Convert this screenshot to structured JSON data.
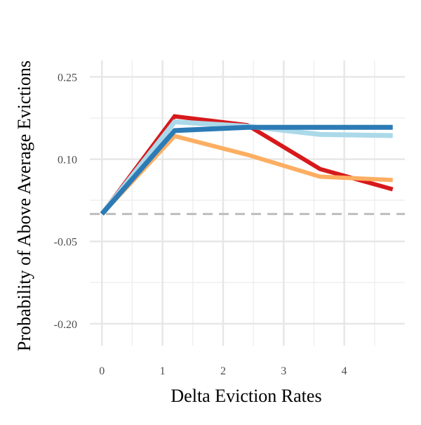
{
  "chart_data": {
    "type": "line",
    "title": "",
    "xlabel": "Delta Eviction Rates",
    "ylabel": "Probability of Above Average Evictions",
    "xlim": [
      -0.2,
      5.0
    ],
    "ylim": [
      -0.24,
      0.28
    ],
    "x_ticks": [
      0,
      1,
      2,
      3,
      4
    ],
    "x_tick_labels": [
      "0",
      "1",
      "2",
      "3",
      "4"
    ],
    "y_ticks": [
      -0.2,
      -0.05,
      0.1,
      0.25
    ],
    "y_tick_labels": [
      "-0.20",
      "-0.05",
      "0.10",
      "0.25"
    ],
    "grid": true,
    "reference_line": {
      "y": 0.0,
      "style": "dashed",
      "color": "#bdbdbd"
    },
    "series": [
      {
        "color": "#d7191c",
        "x": [
          0,
          1.2,
          2.4,
          3.6,
          4.8
        ],
        "y": [
          0.0,
          0.178,
          0.162,
          0.082,
          0.045
        ]
      },
      {
        "color": "#abd9e9",
        "x": [
          0,
          1.2,
          2.4,
          3.6,
          4.8
        ],
        "y": [
          0.0,
          0.168,
          0.16,
          0.145,
          0.143
        ]
      },
      {
        "color": "#fdae61",
        "x": [
          0,
          1.2,
          2.4,
          3.6,
          4.8
        ],
        "y": [
          0.0,
          0.142,
          0.108,
          0.068,
          0.062
        ]
      },
      {
        "color": "#2c7bb6",
        "x": [
          0,
          1.2,
          2.4,
          3.6,
          4.8
        ],
        "y": [
          0.0,
          0.152,
          0.158,
          0.158,
          0.158
        ]
      }
    ]
  }
}
